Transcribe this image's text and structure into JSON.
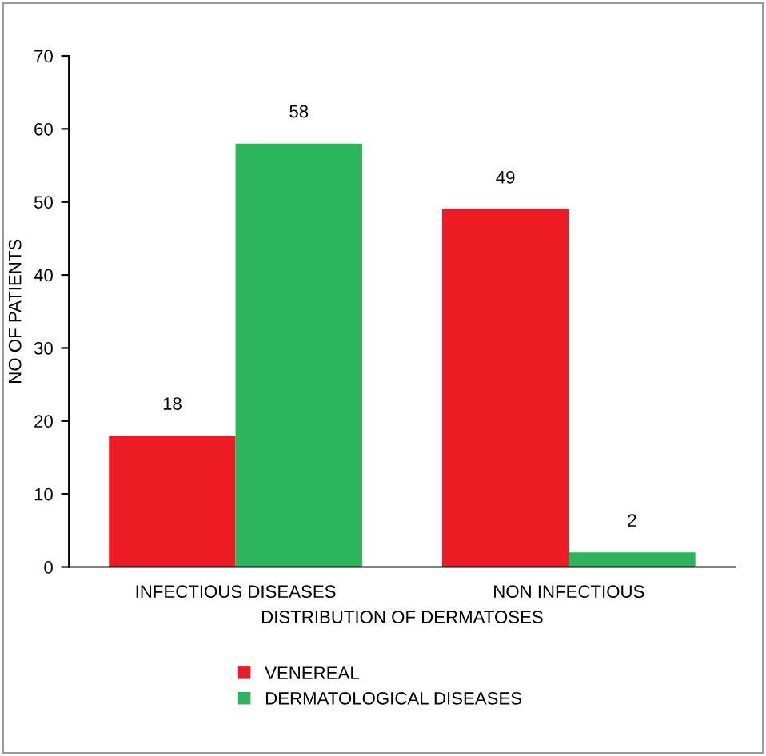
{
  "chart_data": {
    "type": "bar",
    "xlabel": "DISTRIBUTION OF DERMATOSES",
    "ylabel": "NO OF PATIENTS",
    "categories": [
      "INFECTIOUS DISEASES",
      "NON INFECTIOUS"
    ],
    "series": [
      {
        "name": "VENEREAL",
        "color": "#ed1c24",
        "values": [
          18,
          49
        ]
      },
      {
        "name": "DERMATOLOGICAL DISEASES",
        "color": "#2db55d",
        "values": [
          58,
          2
        ]
      }
    ],
    "ylim": [
      0,
      70
    ],
    "yticks": [
      0,
      10,
      20,
      30,
      40,
      50,
      60,
      70
    ],
    "data_labels": true,
    "grid": false,
    "legend": "bottom"
  }
}
